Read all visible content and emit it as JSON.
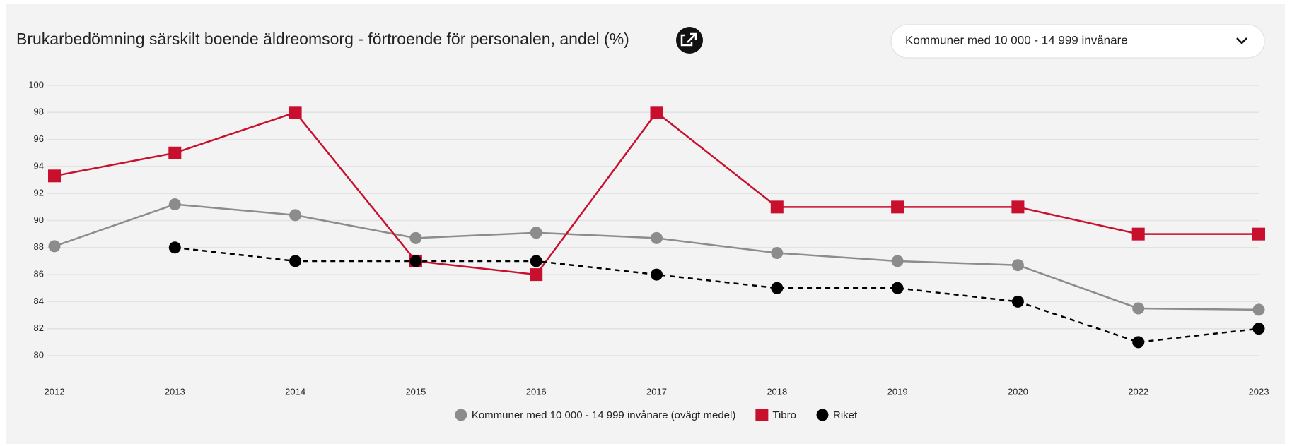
{
  "chart_data": {
    "type": "line",
    "title": "Brukarbedömning särskilt boende äldreomsorg - förtroende för personalen, andel (%)",
    "categories": [
      "2012",
      "2013",
      "2014",
      "2015",
      "2016",
      "2017",
      "2018",
      "2019",
      "2020",
      "2022",
      "2023"
    ],
    "series": [
      {
        "name": "Kommuner med 10 000 - 14 999 invånare (ovägt medel)",
        "color": "#8c8c8c",
        "marker": "circle",
        "dashed": false,
        "values": [
          88.1,
          91.2,
          90.4,
          88.7,
          89.1,
          88.7,
          87.6,
          87.0,
          86.7,
          83.5,
          83.4
        ]
      },
      {
        "name": "Tibro",
        "color": "#c8102e",
        "marker": "square",
        "dashed": false,
        "values": [
          93.3,
          95,
          98,
          87,
          86,
          98,
          91,
          91,
          91,
          89,
          89
        ]
      },
      {
        "name": "Riket",
        "color": "#000000",
        "marker": "circle",
        "dashed": true,
        "values": [
          null,
          88,
          87,
          87,
          87,
          86,
          85,
          85,
          84,
          81,
          82
        ]
      }
    ],
    "ylim": [
      80,
      100
    ],
    "yticks": [
      80,
      82,
      84,
      86,
      88,
      90,
      92,
      94,
      96,
      98,
      100
    ],
    "grid": true
  },
  "filter": {
    "selected": "Kommuner med 10 000 - 14 999 invånare"
  }
}
